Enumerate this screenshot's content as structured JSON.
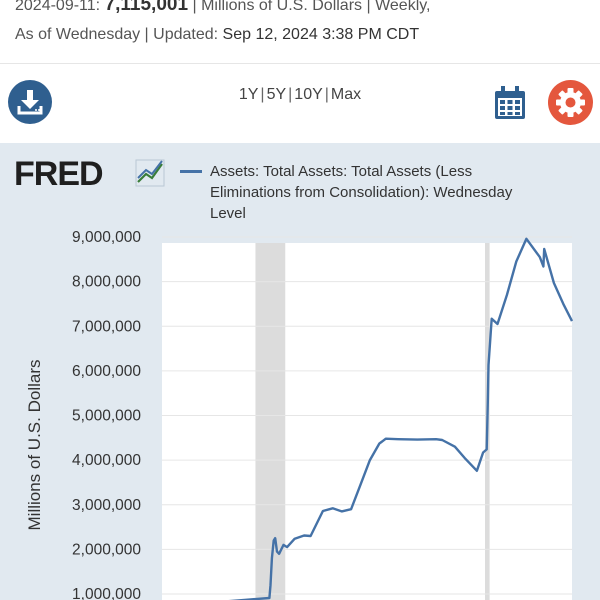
{
  "header": {
    "date": "2024-09-11:",
    "latest_value": "7,115,001",
    "meta": "| Millions of U.S. Dollars | Weekly,",
    "as_of": "As of Wednesday | Updated:",
    "updated": "Sep 12, 2024 3:38 PM CDT"
  },
  "toolbar": {
    "ranges": [
      "1Y",
      "5Y",
      "10Y",
      "Max"
    ],
    "download_icon": "download-icon",
    "calendar_icon": "calendar-icon",
    "settings_icon": "gear-icon"
  },
  "colors": {
    "series": "#4572a7",
    "panel": "#e1e9f0",
    "recession": "#dcdcdc",
    "download_button": "#2f5f8f",
    "settings_button": "#e4573d"
  },
  "chart_data": {
    "type": "line",
    "logo": "FRED",
    "ylabel": "Millions of U.S. Dollars",
    "ylim": [
      0,
      9000000
    ],
    "yticks": [
      1000000,
      2000000,
      3000000,
      4000000,
      5000000,
      6000000,
      7000000,
      8000000,
      9000000
    ],
    "ytick_labels": [
      "1,000,000",
      "2,000,000",
      "3,000,000",
      "4,000,000",
      "5,000,000",
      "6,000,000",
      "7,000,000",
      "8,000,000",
      "9,000,000"
    ],
    "xlim": [
      "2002-12-18",
      "2024-09-11"
    ],
    "grid": true,
    "recessions": [
      [
        "2007-12-01",
        "2009-06-30"
      ],
      [
        "2020-02-01",
        "2020-04-30"
      ]
    ],
    "series": [
      {
        "name": "Assets: Total Assets: Total Assets (Less Eliminations from Consolidation): Wednesday Level",
        "points": [
          [
            "2002-12-18",
            720000
          ],
          [
            "2007-06-01",
            870000
          ],
          [
            "2008-08-27",
            910000
          ],
          [
            "2008-09-17",
            1200000
          ],
          [
            "2008-10-15",
            1800000
          ],
          [
            "2008-11-19",
            2200000
          ],
          [
            "2008-12-17",
            2250000
          ],
          [
            "2009-01-21",
            1950000
          ],
          [
            "2009-03-04",
            1900000
          ],
          [
            "2009-05-27",
            2100000
          ],
          [
            "2009-08-05",
            2050000
          ],
          [
            "2009-12-30",
            2240000
          ],
          [
            "2010-06-30",
            2310000
          ],
          [
            "2010-11-03",
            2300000
          ],
          [
            "2011-06-29",
            2860000
          ],
          [
            "2012-01-04",
            2920000
          ],
          [
            "2012-06-27",
            2850000
          ],
          [
            "2012-12-26",
            2900000
          ],
          [
            "2013-06-26",
            3450000
          ],
          [
            "2013-12-25",
            4000000
          ],
          [
            "2014-06-25",
            4370000
          ],
          [
            "2014-10-29",
            4480000
          ],
          [
            "2015-06-24",
            4470000
          ],
          [
            "2016-06-29",
            4460000
          ],
          [
            "2017-06-28",
            4470000
          ],
          [
            "2017-10-25",
            4450000
          ],
          [
            "2018-06-27",
            4300000
          ],
          [
            "2019-01-02",
            4050000
          ],
          [
            "2019-08-28",
            3760000
          ],
          [
            "2019-12-25",
            4170000
          ],
          [
            "2020-03-04",
            4240000
          ],
          [
            "2020-03-25",
            5300000
          ],
          [
            "2020-04-08",
            6130000
          ],
          [
            "2020-06-10",
            7170000
          ],
          [
            "2020-09-30",
            7050000
          ],
          [
            "2021-03-31",
            7700000
          ],
          [
            "2021-09-29",
            8450000
          ],
          [
            "2022-04-13",
            8960000
          ],
          [
            "2022-12-28",
            8550000
          ],
          [
            "2023-03-08",
            8340000
          ],
          [
            "2023-03-22",
            8730000
          ],
          [
            "2023-09-27",
            7970000
          ],
          [
            "2024-03-27",
            7500000
          ],
          [
            "2024-09-11",
            7115001
          ]
        ]
      }
    ]
  }
}
